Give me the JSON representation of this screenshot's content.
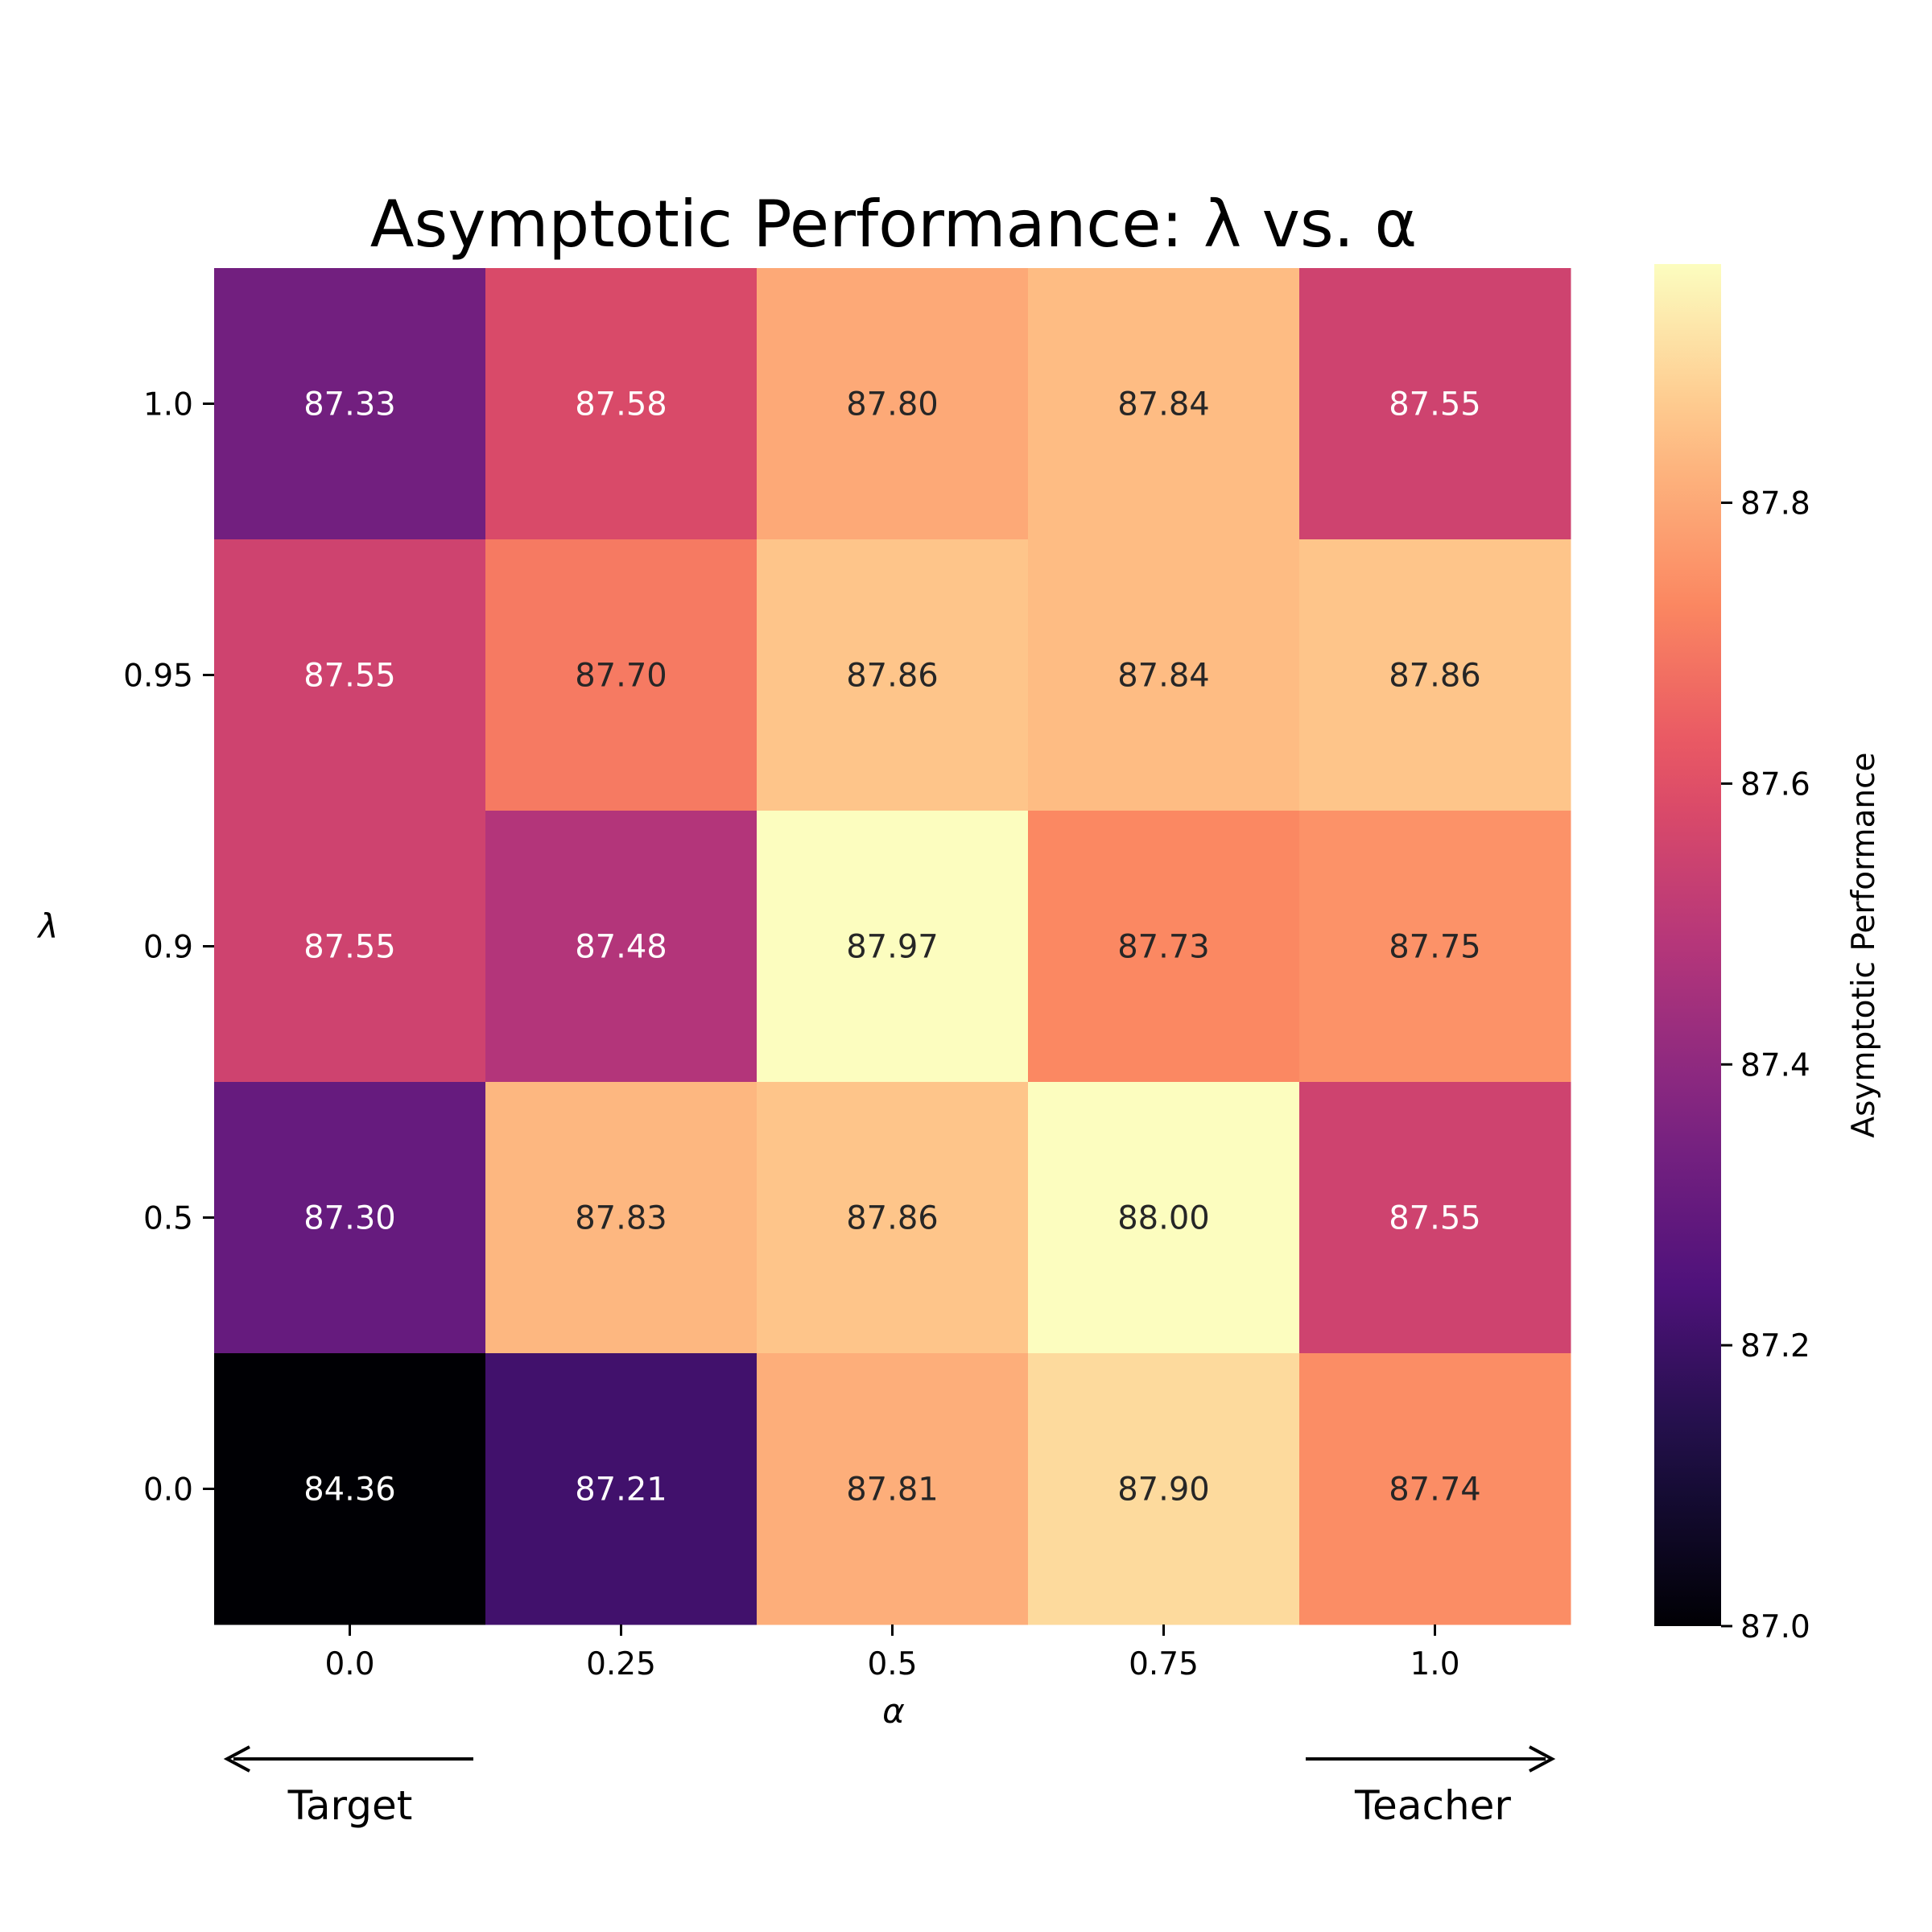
{
  "chart_data": {
    "type": "heatmap",
    "title": "Asymptotic Performance: λ vs. α",
    "xlabel": "α",
    "ylabel": "λ",
    "x_categories": [
      "0.0",
      "0.25",
      "0.5",
      "0.75",
      "1.0"
    ],
    "y_categories": [
      "1.0",
      "0.95",
      "0.9",
      "0.5",
      "0.0"
    ],
    "values": [
      [
        87.33,
        87.58,
        87.8,
        87.84,
        87.55
      ],
      [
        87.55,
        87.7,
        87.86,
        87.84,
        87.86
      ],
      [
        87.55,
        87.48,
        87.97,
        87.73,
        87.75
      ],
      [
        87.3,
        87.83,
        87.86,
        88.0,
        87.55
      ],
      [
        84.36,
        87.21,
        87.81,
        87.9,
        87.74
      ]
    ],
    "value_format": "0.00",
    "colormap": "magma",
    "colorbar": {
      "label": "Asymptotic Performance",
      "min": 87.0,
      "max": 87.97,
      "ticks": [
        "87.0",
        "87.2",
        "87.4",
        "87.6",
        "87.8"
      ]
    },
    "annotations": [
      {
        "text": "Target",
        "direction": "left"
      },
      {
        "text": "Teacher",
        "direction": "right"
      }
    ]
  }
}
